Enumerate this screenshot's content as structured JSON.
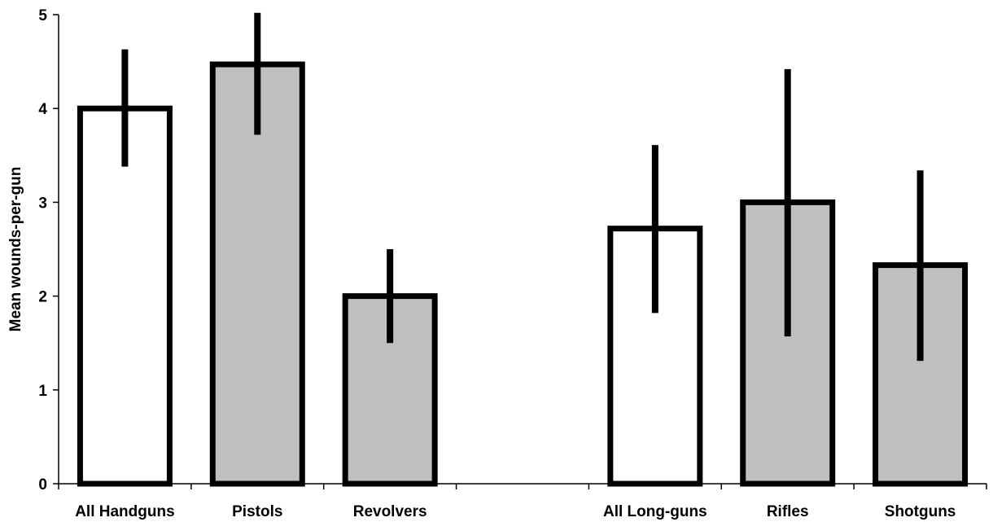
{
  "chart_data": {
    "type": "bar",
    "title": "",
    "xlabel": "",
    "ylabel": "Mean wounds-per-gun",
    "ylim": [
      0,
      5
    ],
    "yticks": [
      0,
      1,
      2,
      3,
      4,
      5
    ],
    "grid": false,
    "legend": "none",
    "categories": [
      "All Handguns",
      "Pistols",
      "Revolvers",
      "",
      "All Long-guns",
      "Rifles",
      "Shotguns"
    ],
    "values": [
      4.0,
      4.47,
      2.0,
      null,
      2.72,
      3.0,
      2.33
    ],
    "error_low": [
      3.38,
      3.72,
      1.5,
      null,
      1.82,
      1.57,
      1.31
    ],
    "error_high": [
      4.63,
      5.02,
      2.5,
      null,
      3.61,
      4.42,
      3.34
    ],
    "fills": [
      "#ffffff",
      "#c0c0c0",
      "#c0c0c0",
      null,
      "#ffffff",
      "#c0c0c0",
      "#c0c0c0"
    ],
    "colors": {
      "outline": "#000000",
      "gray_fill": "#c0c0c0",
      "white_fill": "#ffffff"
    }
  }
}
